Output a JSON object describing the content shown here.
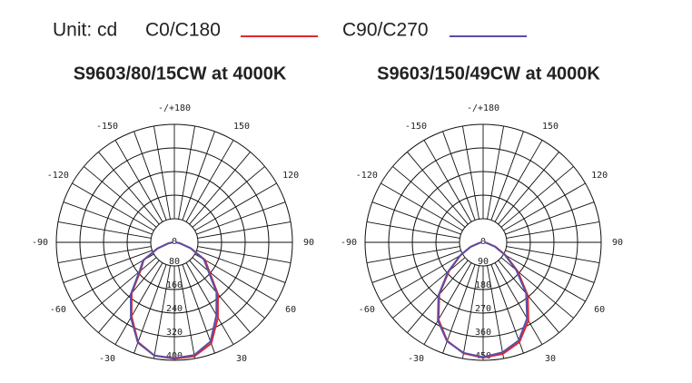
{
  "unit": "Unit: cd",
  "chart_data": [
    {
      "type": "polar",
      "title": "S9603/80/15CW at 4000K",
      "x": [
        -90,
        -80,
        -70,
        -60,
        -50,
        -40,
        -30,
        -20,
        -10,
        0,
        10,
        20,
        30,
        40,
        50,
        60,
        70,
        80,
        90
      ],
      "series": [
        {
          "name": "C0/C180",
          "color": "#e0282e",
          "values": [
            5,
            20,
            60,
            120,
            150,
            225,
            290,
            360,
            390,
            395,
            392,
            365,
            295,
            230,
            155,
            120,
            60,
            20,
            5
          ]
        },
        {
          "name": "C90/C270",
          "color": "#5b4ea6",
          "values": [
            5,
            22,
            62,
            122,
            155,
            230,
            295,
            362,
            390,
            393,
            388,
            358,
            285,
            222,
            150,
            115,
            58,
            18,
            5
          ]
        }
      ],
      "ylim": [
        0,
        400
      ],
      "yticks": [
        0,
        80,
        160,
        240,
        320,
        400
      ],
      "angle_ticks": [
        {
          "value": 180,
          "label": "-/+180"
        },
        -150,
        150,
        -120,
        120,
        -90,
        90,
        -60,
        60,
        -30,
        30
      ]
    },
    {
      "type": "polar",
      "title": "S9603/150/49CW at 4000K",
      "x": [
        -90,
        -80,
        -70,
        -60,
        -50,
        -40,
        -30,
        -20,
        -10,
        0,
        10,
        20,
        30,
        40,
        50,
        60,
        70,
        80,
        90
      ],
      "series": [
        {
          "color": "#e0282e",
          "values": [
            5,
            15,
            50,
            100,
            170,
            260,
            340,
            400,
            430,
            440,
            432,
            405,
            345,
            265,
            172,
            100,
            50,
            15,
            5
          ]
        },
        {
          "color": "#5b4ea6",
          "values": [
            5,
            16,
            52,
            102,
            175,
            265,
            345,
            402,
            428,
            438,
            426,
            398,
            335,
            255,
            165,
            96,
            48,
            14,
            5
          ]
        }
      ],
      "ylim": [
        0,
        450
      ],
      "yticks": [
        0,
        90,
        180,
        270,
        360,
        450
      ],
      "angle_ticks": [
        {
          "value": 180,
          "label": "-/+180"
        },
        -150,
        150,
        -120,
        120,
        -90,
        90,
        -60,
        60,
        -30,
        30
      ]
    }
  ]
}
